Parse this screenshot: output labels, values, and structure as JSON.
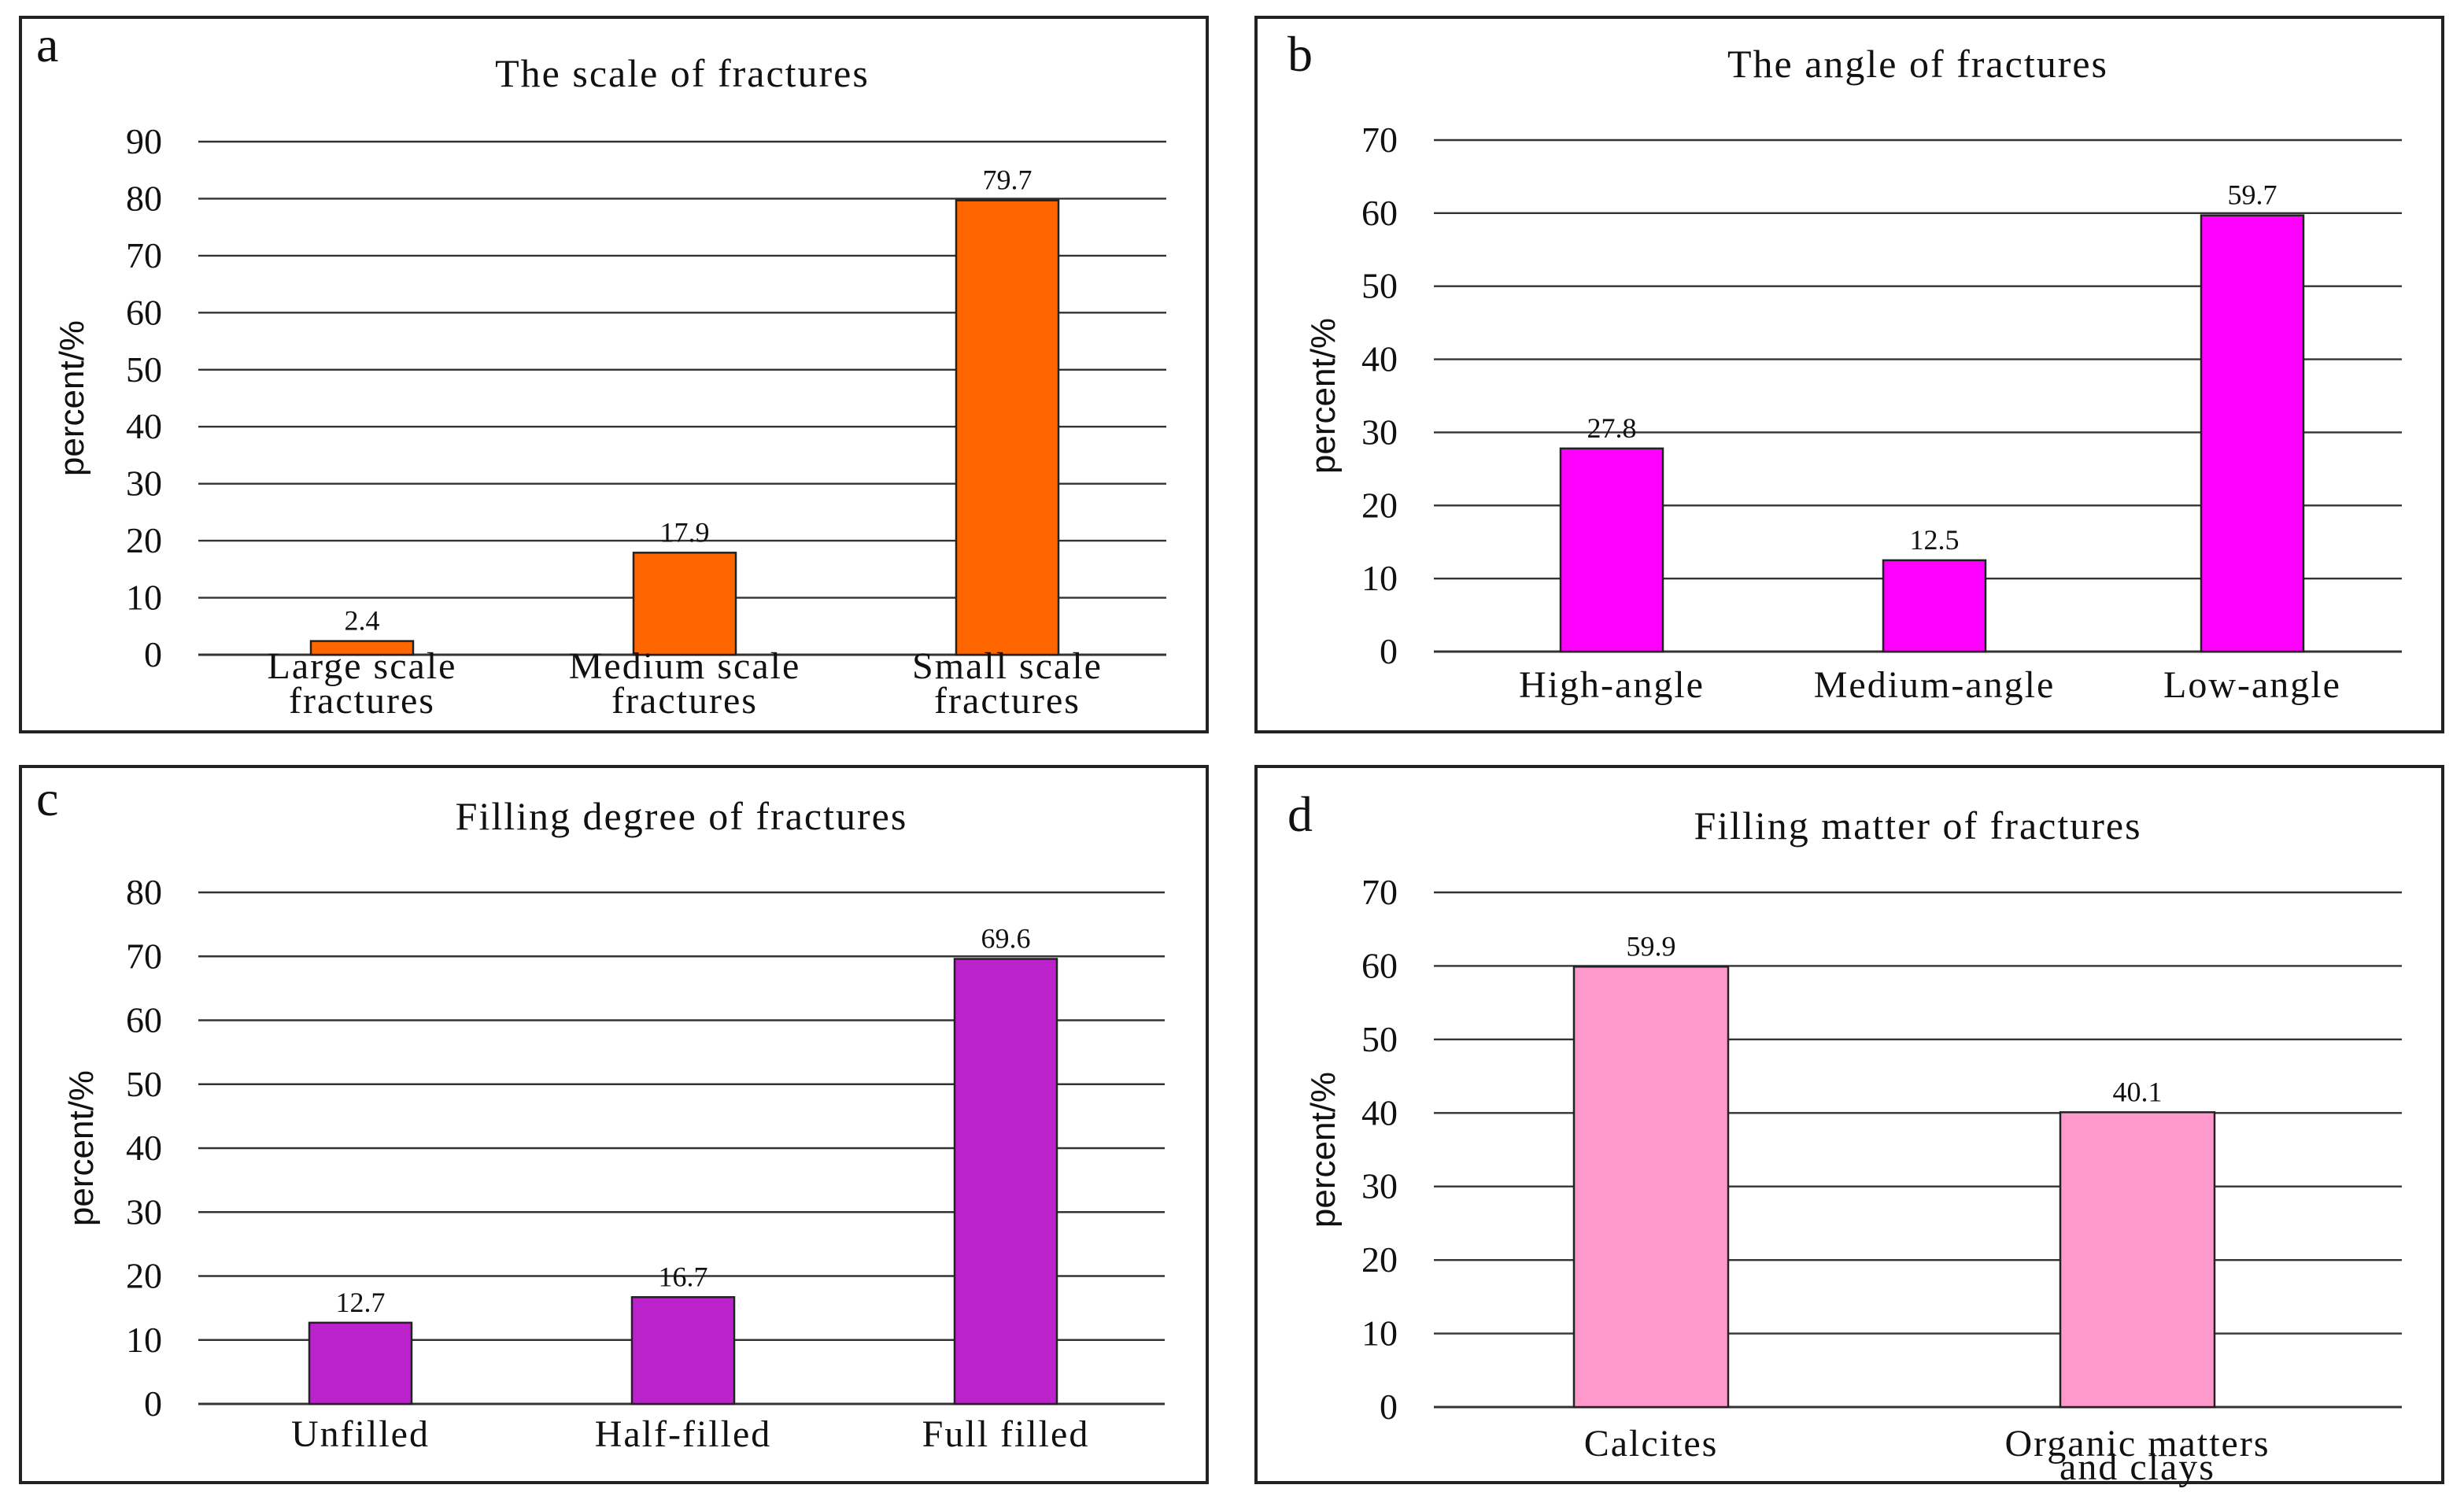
{
  "chart_data": [
    {
      "type": "bar",
      "panel_label": "a",
      "title": "The  scale of fractures",
      "ylabel": "percent/%",
      "ylim": [
        0,
        90
      ],
      "yticks": [
        0,
        10,
        20,
        30,
        40,
        50,
        60,
        70,
        80,
        90
      ],
      "categories": [
        [
          "Large  scale",
          "fractures"
        ],
        [
          "Medium  scale",
          "fractures"
        ],
        [
          "Small  scale",
          "fractures"
        ]
      ],
      "values": [
        2.4,
        17.9,
        79.7
      ],
      "value_labels": [
        "2.4",
        "17.9",
        "79.7"
      ],
      "color": "#ff6600",
      "grid": true
    },
    {
      "type": "bar",
      "panel_label": "b",
      "title": "The  angle  of  fractures",
      "ylabel": "percent/%",
      "ylim": [
        0,
        70
      ],
      "yticks": [
        0,
        10,
        20,
        30,
        40,
        50,
        60,
        70
      ],
      "categories": [
        [
          "High-angle"
        ],
        [
          "Medium-angle"
        ],
        [
          "Low-angle"
        ]
      ],
      "values": [
        27.8,
        12.5,
        59.7
      ],
      "value_labels": [
        "27.8",
        "12.5",
        "59.7"
      ],
      "color": "#ff00ff",
      "grid": true
    },
    {
      "type": "bar",
      "panel_label": "c",
      "title": "Filling degree of fractures",
      "ylabel": "percent/%",
      "ylim": [
        0,
        80
      ],
      "yticks": [
        0,
        10,
        20,
        30,
        40,
        50,
        60,
        70,
        80
      ],
      "categories": [
        [
          "Unfilled"
        ],
        [
          "Half-filled"
        ],
        [
          "Full filled"
        ]
      ],
      "values": [
        12.7,
        16.7,
        69.6
      ],
      "value_labels": [
        "12.7",
        "16.7",
        "69.6"
      ],
      "color": "#bb22cc",
      "grid": true
    },
    {
      "type": "bar",
      "panel_label": "d",
      "title": "Filling  matter  of  fractures",
      "ylabel": "percent/%",
      "ylim": [
        0,
        70
      ],
      "yticks": [
        0,
        10,
        20,
        30,
        40,
        50,
        60,
        70
      ],
      "categories": [
        [
          "Calcites"
        ],
        [
          "Organic  matters",
          "and  clays"
        ]
      ],
      "values": [
        59.9,
        40.1
      ],
      "value_labels": [
        "59.9",
        "40.1"
      ],
      "color": "#ff99cc",
      "grid": true
    }
  ]
}
